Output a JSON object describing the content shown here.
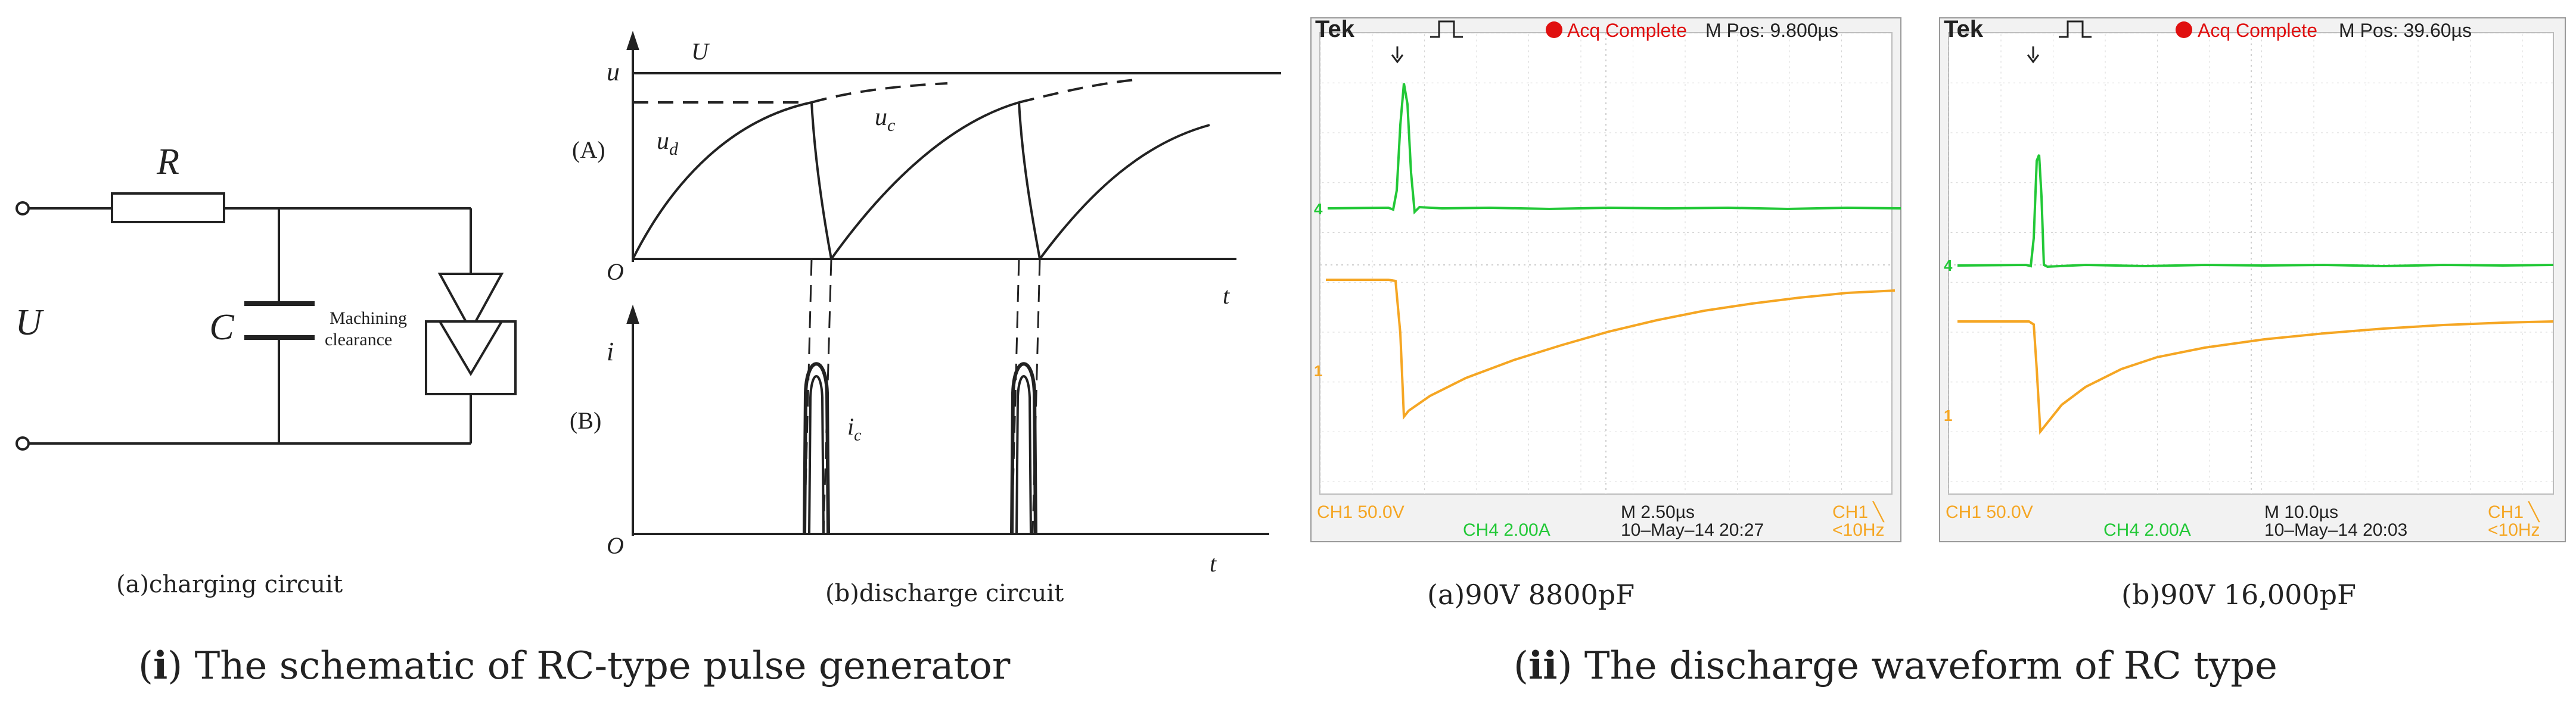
{
  "circuit": {
    "label_r": "R",
    "label_c": "C",
    "label_u": "U",
    "gap_line1": "Machining",
    "gap_line2": "clearance",
    "caption": "(a)charging circuit"
  },
  "discharge": {
    "label_u_axis": "u",
    "label_U": "U",
    "label_A": "(A)",
    "label_ud_main": "u",
    "label_ud_sub": "d",
    "label_uc_main": "u",
    "label_uc_sub": "c",
    "label_i_axis": "i",
    "label_B": "(B)",
    "label_ic_main": "i",
    "label_ic_sub": "c",
    "label_O": "O",
    "label_t": "t",
    "caption": "(b)discharge circuit"
  },
  "scope_a": {
    "brand": "Tek",
    "status": "Acq Complete",
    "mpos": "M Pos: 9.800µs",
    "ch1": "CH1  50.0V",
    "timebase": "M 2.50µs",
    "trig": "CH1 ╲",
    "ch4": "CH4  2.00A",
    "date": "10–May–14 20:27",
    "freq": "<10Hz",
    "marker4": "4",
    "marker1": "1",
    "caption": "(a)90V 8800pF"
  },
  "scope_b": {
    "brand": "Tek",
    "status": "Acq Complete",
    "mpos": "M Pos: 39.60µs",
    "ch1": "CH1  50.0V",
    "timebase": "M 10.0µs",
    "trig": "CH1 ╲",
    "ch4": "CH4  2.00A",
    "date": "10–May–14 20:03",
    "freq": "<10Hz",
    "marker4": "4",
    "marker1": "1",
    "caption": "(b)90V 16,000pF"
  },
  "captions": {
    "left_paren_open": "(",
    "left_num": "i",
    "left_text": ") The schematic of RC-type pulse generator",
    "right_paren_open": "(",
    "right_num": "ii",
    "right_text": ") The discharge waveform of RC type"
  },
  "colors": {
    "ch4_trace": "#22c837",
    "ch1_trace": "#f5a623",
    "status_dot": "#e01010",
    "scope_bg": "#ffffff",
    "grid": "#c8c8c8"
  }
}
